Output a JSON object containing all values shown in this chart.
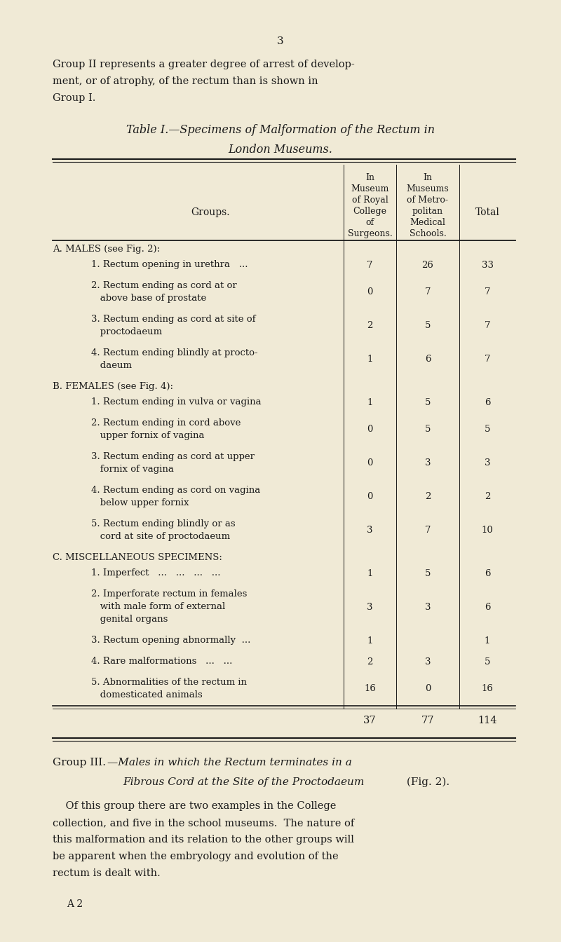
{
  "bg_color": "#f0ead6",
  "page_number": "3",
  "intro_text_lines": [
    "Group II represents a greater degree of arrest of develop-",
    "ment, or of atrophy, of the rectum than is shown in",
    "Group I."
  ],
  "table_title_line1": "Table I.—Specimens of Malformation of the Rectum in",
  "table_title_line2": "London Museums.",
  "header_col1_lines": [
    "In",
    "Museum",
    "of Royal",
    "College",
    "of",
    "Surgeons."
  ],
  "header_col2_lines": [
    "In",
    "Museums",
    "of Metro-",
    "politan",
    "Medical",
    "Schools."
  ],
  "header_col3": "Total",
  "header_groups": "Groups.",
  "sections": [
    {
      "section_label": "A.",
      "section_label_sc": "Males",
      "section_label_rest": " (see Fig. 2):",
      "rows": [
        {
          "label_lines": [
            "1. Rectum opening in urethra   ..."
          ],
          "c1": "7",
          "c2": "26",
          "c3": "33"
        },
        {
          "label_lines": [
            "2. Rectum ending as cord at or",
            "   above base of prostate"
          ],
          "c1": "0",
          "c2": "7",
          "c3": "7"
        },
        {
          "label_lines": [
            "3. Rectum ending as cord at site of",
            "   proctodaeum"
          ],
          "c1": "2",
          "c2": "5",
          "c3": "7"
        },
        {
          "label_lines": [
            "4. Rectum ending blindly at procto-",
            "   daeum"
          ],
          "c1": "1",
          "c2": "6",
          "c3": "7"
        }
      ]
    },
    {
      "section_label": "B.",
      "section_label_sc": "Females",
      "section_label_rest": " (see Fig. 4):",
      "rows": [
        {
          "label_lines": [
            "1. Rectum ending in vulva or vagina"
          ],
          "c1": "1",
          "c2": "5",
          "c3": "6"
        },
        {
          "label_lines": [
            "2. Rectum ending in cord above",
            "   upper fornix of vagina"
          ],
          "c1": "0",
          "c2": "5",
          "c3": "5"
        },
        {
          "label_lines": [
            "3. Rectum ending as cord at upper",
            "   fornix of vagina"
          ],
          "c1": "0",
          "c2": "3",
          "c3": "3"
        },
        {
          "label_lines": [
            "4. Rectum ending as cord on vagina",
            "   below upper fornix"
          ],
          "c1": "0",
          "c2": "2",
          "c3": "2"
        },
        {
          "label_lines": [
            "5. Rectum ending blindly or as",
            "   cord at site of proctodaeum"
          ],
          "c1": "3",
          "c2": "7",
          "c3": "10"
        }
      ]
    },
    {
      "section_label": "C.",
      "section_label_sc": "Miscellaneous Specimens",
      "section_label_rest": ":",
      "rows": [
        {
          "label_lines": [
            "1. Imperfect   ...   ...   ...   ..."
          ],
          "c1": "1",
          "c2": "5",
          "c3": "6"
        },
        {
          "label_lines": [
            "2. Imperforate rectum in females",
            "   with male form of external",
            "   genital organs"
          ],
          "c1": "3",
          "c2": "3",
          "c3": "6"
        },
        {
          "label_lines": [
            "3. Rectum opening abnormally  ..."
          ],
          "c1": "1",
          "c2": "",
          "c3": "1"
        },
        {
          "label_lines": [
            "4. Rare malformations   ...   ..."
          ],
          "c1": "2",
          "c2": "3",
          "c3": "5"
        },
        {
          "label_lines": [
            "5. Abnormalities of the rectum in",
            "   domesticated animals"
          ],
          "c1": "16",
          "c2": "0",
          "c3": "16"
        }
      ]
    }
  ],
  "total_c1": "37",
  "total_c2": "77",
  "total_c3": "114",
  "group3_line1_normal": "Group III.",
  "group3_line1_italic": "—Males in which the Rectum terminates in a",
  "group3_line2_italic": "Fibrous Cord at the Site of the Proctodaeum",
  "group3_line2_normal": " (Fig. 2).",
  "group3_para_lines": [
    "    Of this group there are two examples in the College",
    "collection, and five in the school museums.  The nature of",
    "this malformation and its relation to the other groups will",
    "be apparent when the embryology and evolution of the",
    "rectum is dealt with."
  ],
  "footnote": "A 2"
}
